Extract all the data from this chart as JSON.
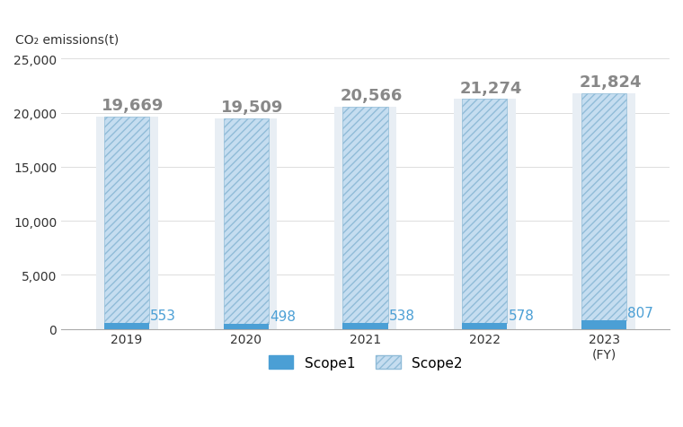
{
  "years": [
    "2019",
    "2020",
    "2021",
    "2022",
    "2023\n(FY)"
  ],
  "scope1": [
    553,
    498,
    538,
    578,
    807
  ],
  "scope2": [
    19116,
    19011,
    20028,
    20696,
    21017
  ],
  "totals": [
    19669,
    19509,
    20566,
    21274,
    21824
  ],
  "scope1_color": "#4b9fd5",
  "scope2_face_color": "#c5ddf0",
  "scope2_hatch_color": "#90bcd8",
  "bg_bar_color": "#e8eef4",
  "ylabel": "CO₂ emissions(t)",
  "ylim": [
    0,
    25000
  ],
  "yticks": [
    0,
    5000,
    10000,
    15000,
    20000,
    25000
  ],
  "bar_width": 0.38,
  "bg_bar_width": 0.52,
  "legend_scope1": "Scope1",
  "legend_scope2": "Scope2",
  "title_fontsize": 10,
  "tick_fontsize": 10,
  "label_fontsize": 11,
  "total_fontsize": 13,
  "scope1_label_fontsize": 11
}
